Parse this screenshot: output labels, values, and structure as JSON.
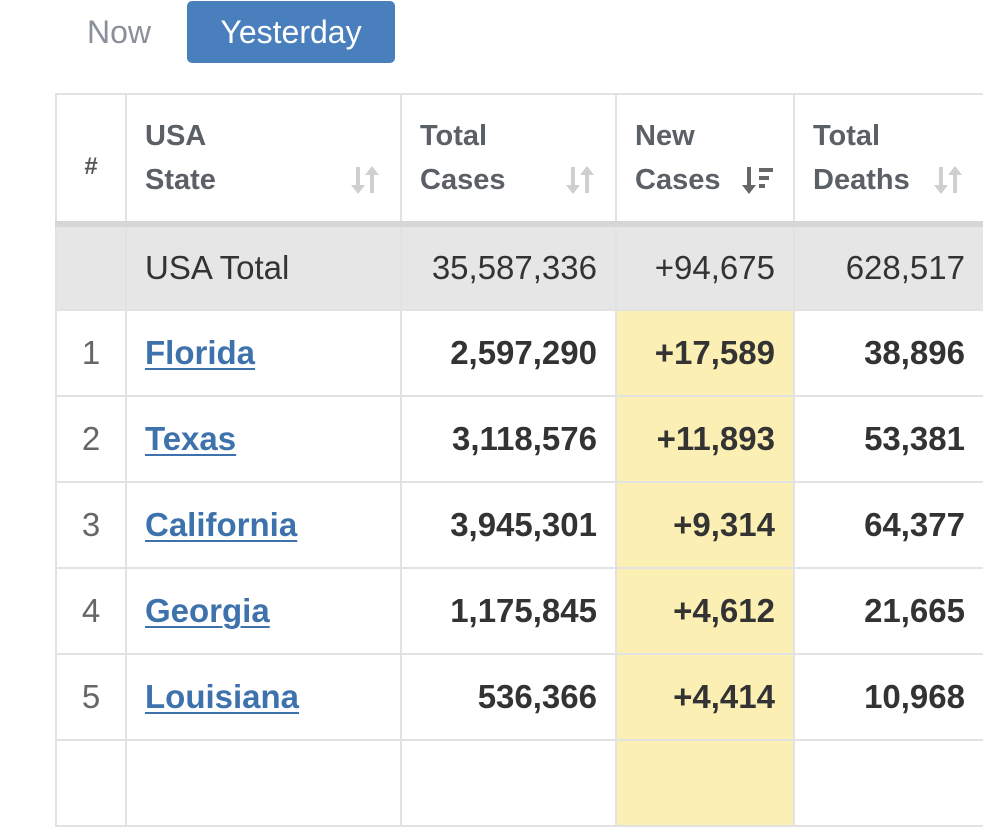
{
  "tabs": {
    "now": "Now",
    "yesterday": "Yesterday",
    "active": "yesterday"
  },
  "headers": {
    "index": "#",
    "state_l1": "USA",
    "state_l2": "State",
    "total_cases_l1": "Total",
    "total_cases_l2": "Cases",
    "new_cases_l1": "New",
    "new_cases_l2": "Cases",
    "total_deaths_l1": "Total",
    "total_deaths_l2": "Deaths"
  },
  "total": {
    "label": "USA Total",
    "total_cases": "35,587,336",
    "new_cases": "+94,675",
    "total_deaths": "628,517"
  },
  "rows": [
    {
      "idx": "1",
      "state": "Florida",
      "total_cases": "2,597,290",
      "new_cases": "+17,589",
      "total_deaths": "38,896"
    },
    {
      "idx": "2",
      "state": "Texas",
      "total_cases": "3,118,576",
      "new_cases": "+11,893",
      "total_deaths": "53,381"
    },
    {
      "idx": "3",
      "state": "California",
      "total_cases": "3,945,301",
      "new_cases": "+9,314",
      "total_deaths": "64,377"
    },
    {
      "idx": "4",
      "state": "Georgia",
      "total_cases": "1,175,845",
      "new_cases": "+4,612",
      "total_deaths": "21,665"
    },
    {
      "idx": "5",
      "state": "Louisiana",
      "total_cases": "536,366",
      "new_cases": "+4,414",
      "total_deaths": "10,968"
    },
    {
      "idx": "",
      "state": "",
      "total_cases": "",
      "new_cases": "",
      "total_deaths": ""
    }
  ],
  "colors": {
    "accent": "#4a7fbd",
    "link": "#3e72ac",
    "highlight": "#fcefb4",
    "total_row": "#e6e6e6"
  },
  "icons": {
    "sort_unsorted": "sort-icon",
    "sort_desc": "sort-desc-icon"
  }
}
